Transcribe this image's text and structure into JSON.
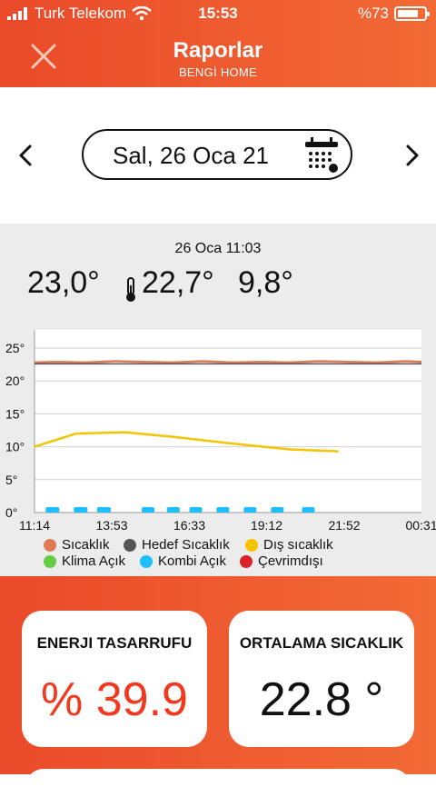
{
  "status_bar": {
    "carrier": "Turk Telekom",
    "time": "15:53",
    "battery": "%73",
    "battery_level": 0.73
  },
  "header": {
    "title": "Raporlar",
    "subtitle": "BENGİ HOME"
  },
  "date_selector": {
    "date": "Sal, 26 Oca 21"
  },
  "reading": {
    "timestamp": "26 Oca 11:03",
    "temperature": "23,0°",
    "thermo_temp": "22,7°",
    "outdoor": "9,8°"
  },
  "colors": {
    "accent": "#f05a30",
    "sicaklik": "#e07a56",
    "hedef": "#555555",
    "dis": "#f5c400",
    "klima": "#66cc44",
    "kombi": "#1ebfff",
    "cevrimdisi": "#d9222a"
  },
  "chart_data": {
    "type": "line",
    "y_ticks": [
      "25°",
      "20°",
      "15°",
      "10°",
      "5°",
      "0°"
    ],
    "ylim": [
      0,
      25
    ],
    "x_ticks": [
      "11:14",
      "13:53",
      "16:33",
      "19:12",
      "21:52",
      "00:31"
    ],
    "x_range_minutes": [
      674,
      1471
    ],
    "series": [
      {
        "name": "Sıcaklık",
        "color": "#e07a56",
        "x": [
          674,
          720,
          780,
          840,
          900,
          960,
          1020,
          1080,
          1140,
          1200,
          1260,
          1320,
          1380,
          1440,
          1471
        ],
        "y": [
          22.8,
          22.9,
          22.8,
          23.0,
          22.9,
          22.8,
          23.0,
          22.8,
          22.9,
          22.8,
          23.0,
          22.9,
          22.8,
          23.0,
          22.9
        ]
      },
      {
        "name": "Hedef Sıcaklık",
        "color": "#555555",
        "x": [
          674,
          1471
        ],
        "y": [
          22.6,
          22.6
        ]
      },
      {
        "name": "Dış sıcaklık",
        "color": "#f5c400",
        "x": [
          674,
          760,
          860,
          960,
          1080,
          1200,
          1300
        ],
        "y": [
          10.0,
          12.0,
          12.2,
          11.5,
          10.5,
          9.6,
          9.3
        ]
      },
      {
        "name": "Kombi Açık",
        "color": "#1ebfff",
        "type": "markers",
        "x": [
          710,
          712,
          768,
          770,
          816,
          818,
          908,
          960,
          1006,
          1062,
          1118,
          1174,
          1238
        ],
        "y": [
          0,
          0,
          0,
          0,
          0,
          0,
          0,
          0,
          0,
          0,
          0,
          0,
          0
        ]
      }
    ],
    "legend": [
      {
        "label": "Sıcaklık",
        "color": "#e07a56"
      },
      {
        "label": "Hedef Sıcaklık",
        "color": "#555555"
      },
      {
        "label": "Dış sıcaklık",
        "color": "#f5c400"
      },
      {
        "label": "Klima Açık",
        "color": "#66cc44"
      },
      {
        "label": "Kombi Açık",
        "color": "#1ebfff"
      },
      {
        "label": "Çevrimdışı",
        "color": "#d9222a"
      }
    ]
  },
  "cards": {
    "energy": {
      "label": "ENERJI TASARRUFU",
      "value": "% 39.9",
      "color": "#f0391e"
    },
    "average": {
      "label": "ORTALAMA SICAKLIK",
      "value": "22.8 °",
      "color": "#111111"
    }
  }
}
